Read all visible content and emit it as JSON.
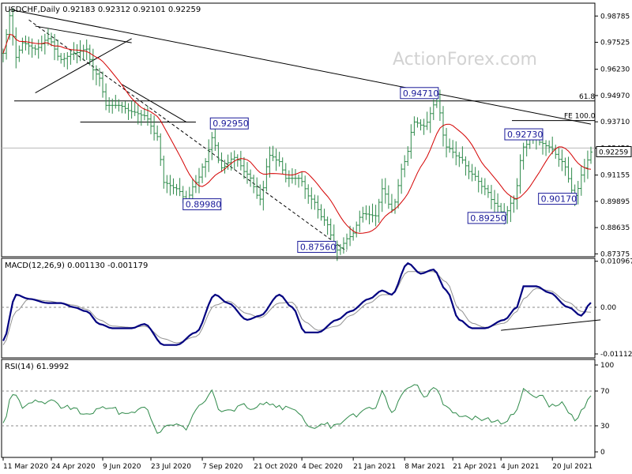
{
  "chart_data": {
    "type": "line",
    "watermark": "ActionForex.com",
    "colors": {
      "candle": "#2d8a4a",
      "ma": "#d40000",
      "trend": "#000000",
      "macd": "#000080",
      "signal": "#909090",
      "rsi": "#2f8a4a",
      "annotation_border": "#1a1a99",
      "price_marker": "#ffffff"
    },
    "price_panel": {
      "title": "USDCHF,Daily  0.92183 0.92312 0.92101 0.92259",
      "ylim": [
        0.8735,
        0.9925
      ],
      "yticks": [
        "0.98785",
        "0.97525",
        "0.96230",
        "0.94970",
        "0.93710",
        "0.92450",
        "0.91155",
        "0.89895",
        "0.88635",
        "0.87375"
      ],
      "last_price": "0.92259",
      "levels": [
        {
          "label": "61.8",
          "value": 0.9471
        },
        {
          "label": "FE 100.0",
          "value": 0.9377
        },
        {
          "label": "",
          "value": 0.9245
        }
      ],
      "annotations": [
        {
          "label": "0.92950",
          "value": 0.9295,
          "index": 65
        },
        {
          "label": "0.89980",
          "value": 0.8998,
          "index": 57
        },
        {
          "label": "0.87560",
          "value": 0.8756,
          "index": 104
        },
        {
          "label": "0.94710",
          "value": 0.9471,
          "index": 135
        },
        {
          "label": "0.92730",
          "value": 0.9273,
          "index": 167
        },
        {
          "label": "0.89250",
          "value": 0.8925,
          "index": 156
        },
        {
          "label": "0.90170",
          "value": 0.9017,
          "index": 178
        }
      ],
      "close_knots": [
        [
          0,
          0.97
        ],
        [
          2,
          0.988
        ],
        [
          4,
          0.968
        ],
        [
          6,
          0.975
        ],
        [
          10,
          0.972
        ],
        [
          14,
          0.977
        ],
        [
          18,
          0.967
        ],
        [
          22,
          0.97
        ],
        [
          26,
          0.972
        ],
        [
          28,
          0.962
        ],
        [
          30,
          0.958
        ],
        [
          32,
          0.945
        ],
        [
          36,
          0.945
        ],
        [
          40,
          0.942
        ],
        [
          44,
          0.94
        ],
        [
          48,
          0.93
        ],
        [
          50,
          0.908
        ],
        [
          54,
          0.905
        ],
        [
          57,
          0.8998
        ],
        [
          60,
          0.908
        ],
        [
          63,
          0.918
        ],
        [
          65,
          0.9295
        ],
        [
          68,
          0.915
        ],
        [
          72,
          0.92
        ],
        [
          76,
          0.912
        ],
        [
          80,
          0.9
        ],
        [
          83,
          0.921
        ],
        [
          86,
          0.918
        ],
        [
          88,
          0.91
        ],
        [
          92,
          0.91
        ],
        [
          96,
          0.9
        ],
        [
          100,
          0.89
        ],
        [
          104,
          0.8756
        ],
        [
          108,
          0.882
        ],
        [
          112,
          0.893
        ],
        [
          116,
          0.892
        ],
        [
          118,
          0.905
        ],
        [
          121,
          0.895
        ],
        [
          125,
          0.918
        ],
        [
          128,
          0.937
        ],
        [
          131,
          0.935
        ],
        [
          135,
          0.9471
        ],
        [
          138,
          0.925
        ],
        [
          142,
          0.92
        ],
        [
          146,
          0.912
        ],
        [
          150,
          0.905
        ],
        [
          153,
          0.898
        ],
        [
          156,
          0.8925
        ],
        [
          159,
          0.9
        ],
        [
          162,
          0.925
        ],
        [
          165,
          0.93
        ],
        [
          167,
          0.9273
        ],
        [
          170,
          0.925
        ],
        [
          174,
          0.918
        ],
        [
          178,
          0.9017
        ],
        [
          181,
          0.915
        ],
        [
          183,
          0.92259
        ]
      ]
    },
    "macd_panel": {
      "title": "MACD(12,26,9) 0.001130 -0.001179",
      "ylim": [
        -0.0115,
        0.0111
      ],
      "yticks": [
        "0.010967",
        "0.00",
        "-0.011127"
      ],
      "current_label": "0.00",
      "macd_knots": [
        [
          0,
          -0.008
        ],
        [
          4,
          0.003
        ],
        [
          8,
          0.002
        ],
        [
          14,
          0.001
        ],
        [
          18,
          0.001
        ],
        [
          22,
          0.0
        ],
        [
          26,
          -0.001
        ],
        [
          30,
          -0.004
        ],
        [
          34,
          -0.005
        ],
        [
          40,
          -0.005
        ],
        [
          44,
          -0.004
        ],
        [
          50,
          -0.009
        ],
        [
          54,
          -0.009
        ],
        [
          60,
          -0.006
        ],
        [
          66,
          0.003
        ],
        [
          70,
          0.001
        ],
        [
          76,
          -0.003
        ],
        [
          80,
          -0.002
        ],
        [
          86,
          0.003
        ],
        [
          90,
          0.0
        ],
        [
          94,
          -0.006
        ],
        [
          98,
          -0.006
        ],
        [
          104,
          -0.003
        ],
        [
          108,
          -0.001
        ],
        [
          114,
          0.002
        ],
        [
          118,
          0.004
        ],
        [
          121,
          0.003
        ],
        [
          126,
          0.0105
        ],
        [
          130,
          0.008
        ],
        [
          134,
          0.009
        ],
        [
          138,
          0.004
        ],
        [
          142,
          -0.003
        ],
        [
          146,
          -0.005
        ],
        [
          150,
          -0.005
        ],
        [
          156,
          -0.003
        ],
        [
          160,
          0.0
        ],
        [
          162,
          0.005
        ],
        [
          166,
          0.005
        ],
        [
          170,
          0.0035
        ],
        [
          176,
          0.0
        ],
        [
          180,
          -0.002
        ],
        [
          183,
          0.0011
        ]
      ],
      "signal_knots": [
        [
          0,
          -0.009
        ],
        [
          4,
          -0.001
        ],
        [
          8,
          0.002
        ],
        [
          14,
          0.0015
        ],
        [
          18,
          0.001
        ],
        [
          22,
          0.0005
        ],
        [
          26,
          -0.0005
        ],
        [
          30,
          -0.003
        ],
        [
          34,
          -0.0045
        ],
        [
          40,
          -0.0048
        ],
        [
          44,
          -0.0045
        ],
        [
          50,
          -0.0075
        ],
        [
          54,
          -0.0085
        ],
        [
          60,
          -0.007
        ],
        [
          66,
          0.0005
        ],
        [
          70,
          0.0015
        ],
        [
          76,
          -0.0015
        ],
        [
          80,
          -0.0025
        ],
        [
          86,
          0.001
        ],
        [
          90,
          0.0012
        ],
        [
          94,
          -0.0035
        ],
        [
          98,
          -0.0055
        ],
        [
          104,
          -0.0045
        ],
        [
          108,
          -0.002
        ],
        [
          114,
          0.001
        ],
        [
          118,
          0.003
        ],
        [
          121,
          0.003
        ],
        [
          126,
          0.0085
        ],
        [
          130,
          0.0085
        ],
        [
          134,
          0.0085
        ],
        [
          138,
          0.006
        ],
        [
          142,
          -0.0005
        ],
        [
          146,
          -0.0038
        ],
        [
          150,
          -0.0048
        ],
        [
          156,
          -0.0038
        ],
        [
          160,
          -0.001
        ],
        [
          162,
          0.002
        ],
        [
          166,
          0.0045
        ],
        [
          170,
          0.004
        ],
        [
          176,
          0.0012
        ],
        [
          180,
          -0.001
        ],
        [
          183,
          -0.0012
        ]
      ],
      "trendline": [
        [
          155,
          -0.0055
        ],
        [
          186,
          -0.003
        ]
      ]
    },
    "rsi_panel": {
      "title": "RSI(14) 61.9992",
      "ylim": [
        0,
        100
      ],
      "yticks": [
        "100",
        "70",
        "30",
        "0"
      ],
      "rsi_knots": [
        [
          0,
          30
        ],
        [
          3,
          65
        ],
        [
          6,
          55
        ],
        [
          10,
          62
        ],
        [
          14,
          58
        ],
        [
          18,
          50
        ],
        [
          22,
          52
        ],
        [
          26,
          45
        ],
        [
          30,
          50
        ],
        [
          34,
          48
        ],
        [
          38,
          48
        ],
        [
          44,
          50
        ],
        [
          48,
          20
        ],
        [
          52,
          35
        ],
        [
          57,
          30
        ],
        [
          62,
          52
        ],
        [
          65,
          68
        ],
        [
          68,
          48
        ],
        [
          74,
          52
        ],
        [
          78,
          45
        ],
        [
          82,
          58
        ],
        [
          86,
          55
        ],
        [
          90,
          45
        ],
        [
          96,
          30
        ],
        [
          100,
          35
        ],
        [
          104,
          28
        ],
        [
          108,
          40
        ],
        [
          112,
          50
        ],
        [
          116,
          55
        ],
        [
          118,
          68
        ],
        [
          121,
          45
        ],
        [
          126,
          75
        ],
        [
          128,
          82
        ],
        [
          131,
          68
        ],
        [
          135,
          70
        ],
        [
          138,
          48
        ],
        [
          142,
          45
        ],
        [
          146,
          40
        ],
        [
          150,
          35
        ],
        [
          154,
          32
        ],
        [
          156,
          38
        ],
        [
          159,
          45
        ],
        [
          162,
          70
        ],
        [
          165,
          60
        ],
        [
          167,
          62
        ],
        [
          170,
          55
        ],
        [
          174,
          58
        ],
        [
          178,
          35
        ],
        [
          181,
          50
        ],
        [
          183,
          62
        ]
      ]
    },
    "x_axis": {
      "labels": [
        "11 Mar 2020",
        "24 Apr 2020",
        "9 Jun 2020",
        "23 Jul 2020",
        "7 Sep 2020",
        "21 Oct 2020",
        "4 Dec 2020",
        "21 Jan 2021",
        "8 Mar 2021",
        "21 Apr 2021",
        "4 Jun 2021",
        "20 Jul 2021"
      ],
      "label_index": [
        0,
        15,
        31,
        46,
        62,
        78,
        93,
        109,
        125,
        140,
        155,
        171
      ],
      "bars": 184
    }
  }
}
